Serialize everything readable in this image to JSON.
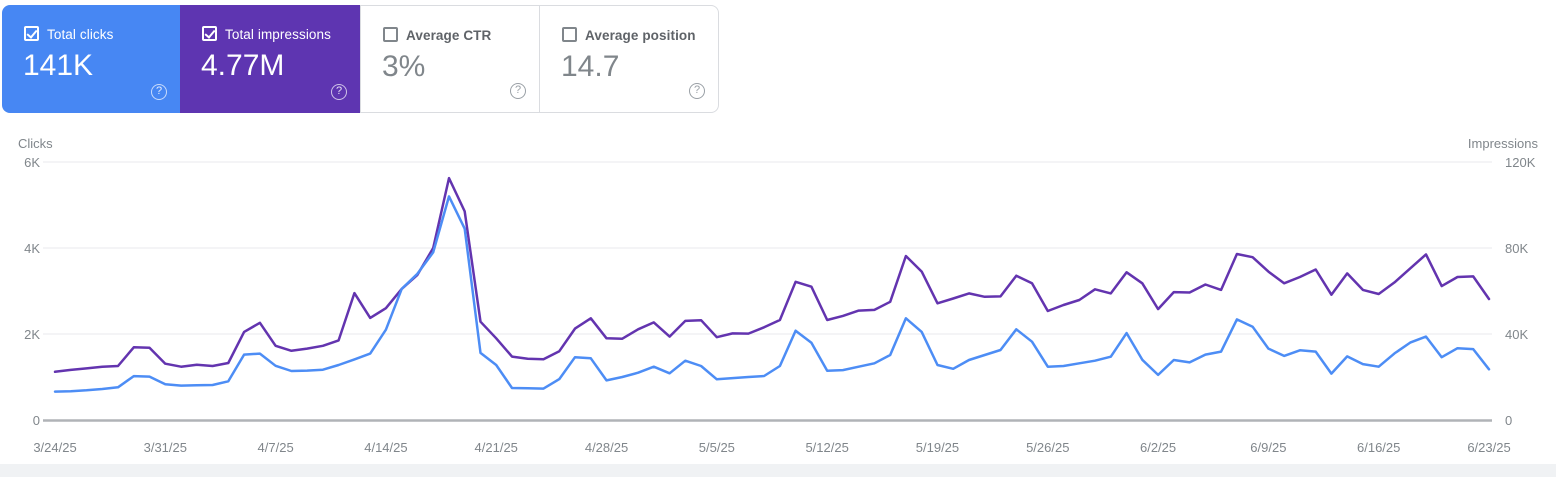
{
  "cards": [
    {
      "name": "total-clicks",
      "label": "Total clicks",
      "value": "141K",
      "checked": true,
      "bg": "#4787f3"
    },
    {
      "name": "total-impressions",
      "label": "Total impressions",
      "value": "4.77M",
      "checked": true,
      "bg": "#5e35b1"
    },
    {
      "name": "average-ctr",
      "label": "Average CTR",
      "value": "3%",
      "checked": false,
      "bg": ""
    },
    {
      "name": "average-position",
      "label": "Average position",
      "value": "14.7",
      "checked": false,
      "bg": ""
    }
  ],
  "ui": {
    "help_glyph": "?"
  },
  "chart_data": {
    "type": "line",
    "title": "",
    "grid": "horizontal",
    "legend_position": "none",
    "x_is_daily": true,
    "x_tick_labels": [
      "3/24/25",
      "3/31/25",
      "4/7/25",
      "4/14/25",
      "4/21/25",
      "4/28/25",
      "5/5/25",
      "5/12/25",
      "5/19/25",
      "5/26/25",
      "6/2/25",
      "6/9/25",
      "6/16/25",
      "6/23/25"
    ],
    "left_axis": {
      "label": "Clicks",
      "ticks": [
        "6K",
        "4K",
        "2K",
        "0"
      ],
      "min": 0,
      "max": 6000
    },
    "right_axis": {
      "label": "Impressions",
      "ticks": [
        "120K",
        "80K",
        "40K",
        "0"
      ],
      "min": 0,
      "max": 120000
    },
    "series": [
      {
        "name": "Clicks",
        "axis": "left",
        "color": "#4d8df5",
        "values": [
          660,
          670,
          690,
          720,
          760,
          1020,
          1010,
          830,
          800,
          810,
          815,
          900,
          1520,
          1545,
          1260,
          1140,
          1150,
          1170,
          1280,
          1410,
          1545,
          2100,
          3050,
          3400,
          3900,
          5200,
          4450,
          1560,
          1280,
          745,
          737,
          730,
          950,
          1460,
          1435,
          920,
          1000,
          1100,
          1240,
          1086,
          1380,
          1256,
          947,
          975,
          1000,
          1023,
          1256,
          2077,
          1798,
          1147,
          1160,
          1240,
          1318,
          1512,
          2365,
          2050,
          1280,
          1190,
          1395,
          1512,
          1628,
          2110,
          1822,
          1240,
          1256,
          1318,
          1380,
          1473,
          2020,
          1400,
          1050,
          1395,
          1340,
          1520,
          1590,
          2340,
          2170,
          1660,
          1490,
          1620,
          1590,
          1080,
          1480,
          1300,
          1240,
          1550,
          1800,
          1940,
          1460,
          1670,
          1650,
          1180
        ]
      },
      {
        "name": "Impressions",
        "axis": "right",
        "color": "#6334af",
        "values": [
          22400,
          23300,
          24000,
          24800,
          25100,
          33800,
          33600,
          26200,
          24800,
          25700,
          25100,
          26500,
          41000,
          45200,
          34500,
          32200,
          33200,
          34500,
          37000,
          59000,
          47500,
          52000,
          61000,
          67500,
          80000,
          112500,
          97000,
          45700,
          38000,
          29500,
          28500,
          28300,
          32000,
          42500,
          47300,
          38000,
          37800,
          42200,
          45400,
          38800,
          46100,
          46400,
          38500,
          40300,
          40200,
          43100,
          46500,
          64300,
          62000,
          46500,
          48400,
          50900,
          51200,
          55000,
          76300,
          69000,
          54300,
          56500,
          58900,
          57300,
          57500,
          67100,
          63600,
          50700,
          53500,
          55800,
          60800,
          58900,
          68700,
          63600,
          51600,
          59500,
          59300,
          63000,
          60500,
          77200,
          75700,
          69000,
          63600,
          66500,
          70000,
          58300,
          68200,
          60500,
          58600,
          64000,
          70500,
          77000,
          62300,
          66500,
          66800,
          56300
        ]
      }
    ]
  }
}
